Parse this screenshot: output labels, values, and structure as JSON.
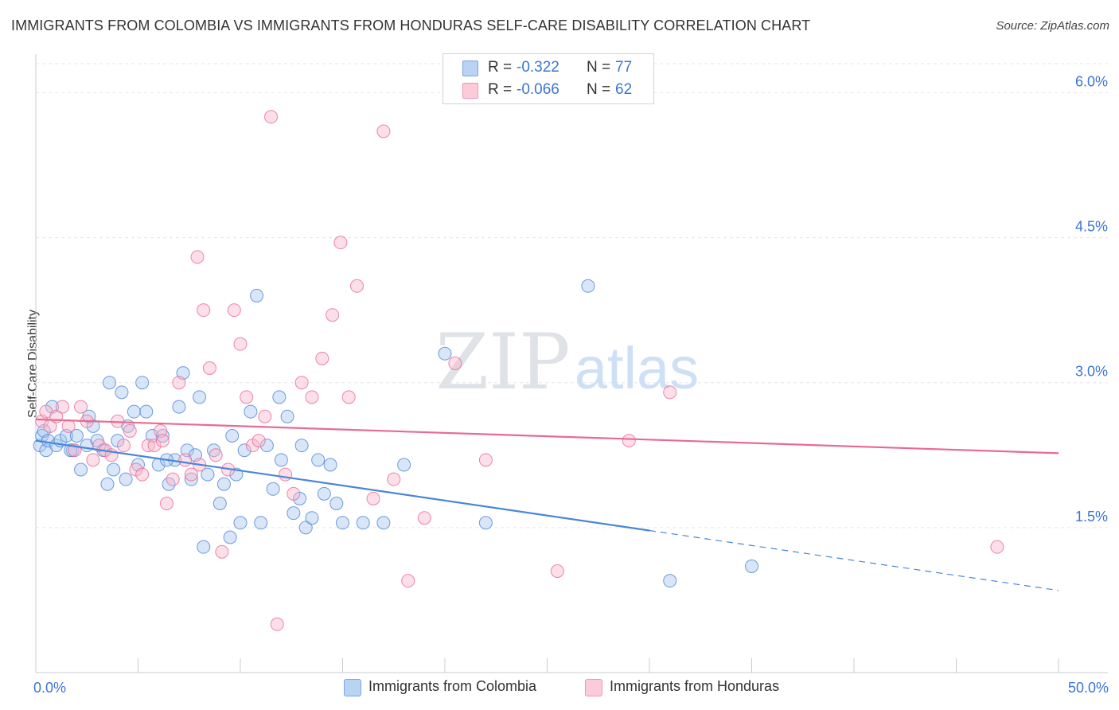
{
  "title": "IMMIGRANTS FROM COLOMBIA VS IMMIGRANTS FROM HONDURAS SELF-CARE DISABILITY CORRELATION CHART",
  "source": "Source: ZipAtlas.com",
  "watermark": {
    "zip": "ZIP",
    "atlas": "atlas"
  },
  "legend_top": {
    "rows": [
      {
        "r_label": "R =",
        "r_value": "-0.322",
        "n_label": "N =",
        "n_value": "77",
        "color": "#a8c8f0"
      },
      {
        "r_label": "R =",
        "r_value": "-0.066",
        "n_label": "N =",
        "n_value": "62",
        "color": "#f8b8cc"
      }
    ]
  },
  "legend_bottom": [
    {
      "label": "Immigrants from Colombia",
      "color": "#a8c8f0"
    },
    {
      "label": "Immigrants from Honduras",
      "color": "#f8b8cc"
    }
  ],
  "chart_data": {
    "type": "scatter",
    "title": "IMMIGRANTS FROM COLOMBIA VS IMMIGRANTS FROM HONDURAS SELF-CARE DISABILITY CORRELATION CHART",
    "xlabel": "",
    "ylabel": "Self-Care Disability",
    "xlim": [
      0,
      50
    ],
    "ylim": [
      0,
      6.3
    ],
    "x_tick_labels": [
      "0.0%",
      "50.0%"
    ],
    "y_ticks": [
      1.5,
      3.0,
      4.5,
      6.0
    ],
    "y_tick_labels": [
      "1.5%",
      "3.0%",
      "4.5%",
      "6.0%"
    ],
    "grid": true,
    "legend_position": "top-center",
    "series": [
      {
        "name": "Immigrants from Colombia",
        "color": "#4a86d8",
        "fill": "#a8c8f0",
        "trend": {
          "x0": 0,
          "y0": 2.4,
          "x1": 30,
          "y1": 1.47,
          "dash_to_x": 50,
          "dash_to_y": 0.85
        },
        "points": [
          [
            0.2,
            2.35
          ],
          [
            0.3,
            2.45
          ],
          [
            0.4,
            2.5
          ],
          [
            0.5,
            2.3
          ],
          [
            0.6,
            2.4
          ],
          [
            0.8,
            2.75
          ],
          [
            1.0,
            2.35
          ],
          [
            1.2,
            2.4
          ],
          [
            1.5,
            2.45
          ],
          [
            1.8,
            2.3
          ],
          [
            2.0,
            2.45
          ],
          [
            2.2,
            2.1
          ],
          [
            2.5,
            2.35
          ],
          [
            2.8,
            2.55
          ],
          [
            3.0,
            2.4
          ],
          [
            3.3,
            2.3
          ],
          [
            3.5,
            1.95
          ],
          [
            3.8,
            2.1
          ],
          [
            4.0,
            2.4
          ],
          [
            4.2,
            2.9
          ],
          [
            4.5,
            2.55
          ],
          [
            4.8,
            2.7
          ],
          [
            5.0,
            2.15
          ],
          [
            5.2,
            3.0
          ],
          [
            5.4,
            2.7
          ],
          [
            5.7,
            2.45
          ],
          [
            6.0,
            2.15
          ],
          [
            6.2,
            2.45
          ],
          [
            6.5,
            1.95
          ],
          [
            6.8,
            2.2
          ],
          [
            7.0,
            2.75
          ],
          [
            7.2,
            3.1
          ],
          [
            7.4,
            2.3
          ],
          [
            7.6,
            2.0
          ],
          [
            7.8,
            2.25
          ],
          [
            8.0,
            2.85
          ],
          [
            8.2,
            1.3
          ],
          [
            8.4,
            2.05
          ],
          [
            8.7,
            2.3
          ],
          [
            9.0,
            1.75
          ],
          [
            9.2,
            1.95
          ],
          [
            9.5,
            1.4
          ],
          [
            9.8,
            2.05
          ],
          [
            10.0,
            1.55
          ],
          [
            10.2,
            2.3
          ],
          [
            10.5,
            2.7
          ],
          [
            10.8,
            3.9
          ],
          [
            11.0,
            1.55
          ],
          [
            11.3,
            2.35
          ],
          [
            11.6,
            1.9
          ],
          [
            12.0,
            2.2
          ],
          [
            12.3,
            2.65
          ],
          [
            12.6,
            1.65
          ],
          [
            12.9,
            1.8
          ],
          [
            13.2,
            1.5
          ],
          [
            13.5,
            1.6
          ],
          [
            13.8,
            2.2
          ],
          [
            14.1,
            1.85
          ],
          [
            14.4,
            2.15
          ],
          [
            14.7,
            1.75
          ],
          [
            15.0,
            1.55
          ],
          [
            16.0,
            1.55
          ],
          [
            17.0,
            1.55
          ],
          [
            18.0,
            2.15
          ],
          [
            20.0,
            3.3
          ],
          [
            22.0,
            1.55
          ],
          [
            27.0,
            4.0
          ],
          [
            31.0,
            0.95
          ],
          [
            35.0,
            1.1
          ],
          [
            6.4,
            2.2
          ],
          [
            3.6,
            3.0
          ],
          [
            2.6,
            2.65
          ],
          [
            1.7,
            2.3
          ],
          [
            4.4,
            2.0
          ],
          [
            9.6,
            2.45
          ],
          [
            11.9,
            2.85
          ],
          [
            13.0,
            2.35
          ]
        ]
      },
      {
        "name": "Immigrants from Honduras",
        "color": "#e86a93",
        "fill": "#f8b8cc",
        "trend": {
          "x0": 0,
          "y0": 2.62,
          "x1": 50,
          "y1": 2.27
        },
        "points": [
          [
            0.3,
            2.6
          ],
          [
            0.5,
            2.7
          ],
          [
            0.7,
            2.55
          ],
          [
            1.0,
            2.65
          ],
          [
            1.3,
            2.75
          ],
          [
            1.6,
            2.55
          ],
          [
            1.9,
            2.3
          ],
          [
            2.2,
            2.75
          ],
          [
            2.5,
            2.6
          ],
          [
            2.8,
            2.2
          ],
          [
            3.1,
            2.35
          ],
          [
            3.4,
            2.3
          ],
          [
            3.7,
            2.25
          ],
          [
            4.0,
            2.6
          ],
          [
            4.3,
            2.35
          ],
          [
            4.6,
            2.5
          ],
          [
            4.9,
            2.1
          ],
          [
            5.2,
            2.05
          ],
          [
            5.5,
            2.35
          ],
          [
            5.8,
            2.35
          ],
          [
            6.1,
            2.5
          ],
          [
            6.4,
            1.75
          ],
          [
            6.7,
            2.0
          ],
          [
            7.0,
            3.0
          ],
          [
            7.3,
            2.2
          ],
          [
            7.6,
            2.05
          ],
          [
            7.9,
            4.3
          ],
          [
            8.2,
            3.75
          ],
          [
            8.5,
            3.15
          ],
          [
            8.8,
            2.25
          ],
          [
            9.1,
            1.25
          ],
          [
            9.4,
            2.1
          ],
          [
            9.7,
            3.75
          ],
          [
            10.0,
            3.4
          ],
          [
            10.3,
            2.85
          ],
          [
            10.6,
            2.35
          ],
          [
            10.9,
            2.4
          ],
          [
            11.2,
            2.65
          ],
          [
            11.5,
            5.75
          ],
          [
            11.8,
            0.5
          ],
          [
            12.2,
            2.05
          ],
          [
            12.6,
            1.85
          ],
          [
            13.0,
            3.0
          ],
          [
            13.5,
            2.85
          ],
          [
            14.0,
            3.25
          ],
          [
            14.5,
            3.7
          ],
          [
            14.9,
            4.45
          ],
          [
            15.3,
            2.85
          ],
          [
            15.7,
            4.0
          ],
          [
            16.5,
            1.8
          ],
          [
            17.0,
            5.6
          ],
          [
            17.5,
            2.0
          ],
          [
            18.2,
            0.95
          ],
          [
            19.0,
            1.6
          ],
          [
            20.5,
            3.2
          ],
          [
            22.0,
            2.2
          ],
          [
            25.5,
            1.05
          ],
          [
            29.0,
            2.4
          ],
          [
            31.0,
            2.9
          ],
          [
            47.0,
            1.3
          ],
          [
            6.2,
            2.4
          ],
          [
            8.0,
            2.15
          ]
        ]
      }
    ]
  }
}
